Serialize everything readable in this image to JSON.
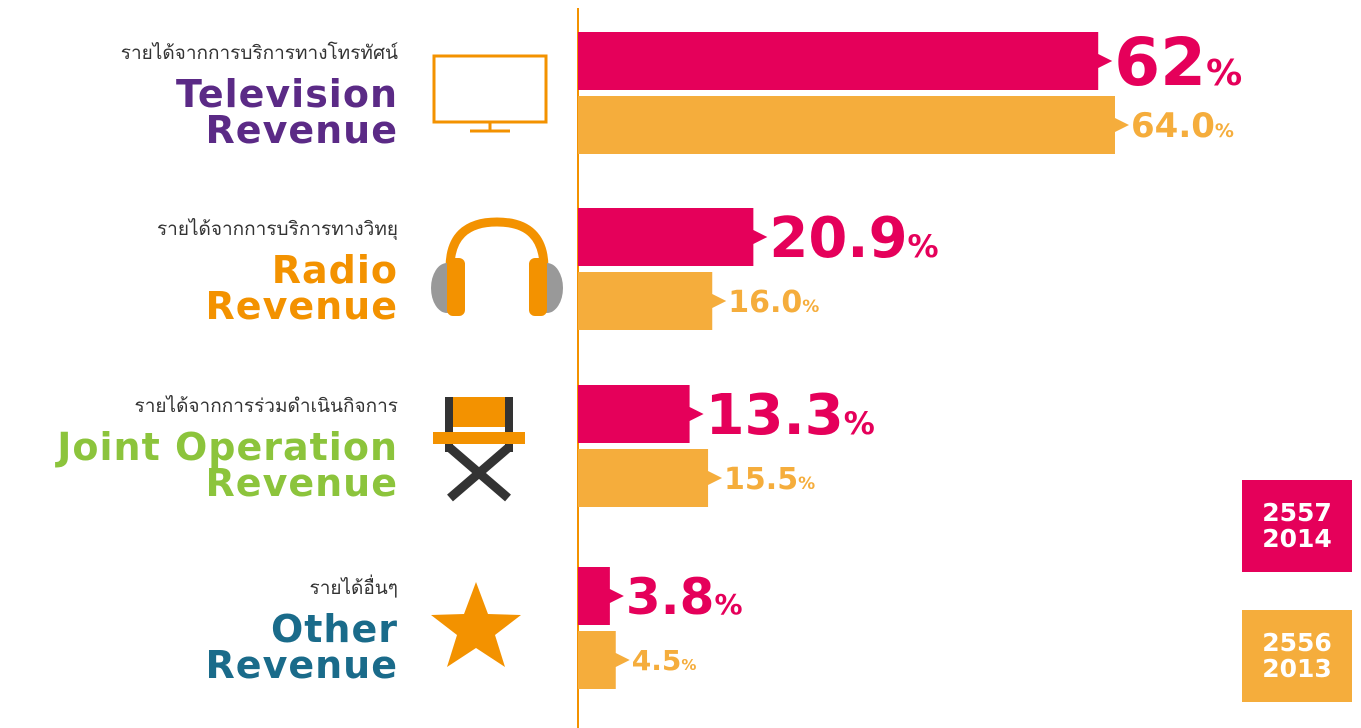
{
  "chart_data": {
    "type": "bar",
    "categories": [
      "Television\nRevenue",
      "Radio\nRevenue",
      "Joint Operation\nRevenue",
      "Other\nRevenue"
    ],
    "category_subtitles": [
      "รายได้จากการบริการทางโทรทัศน์",
      "รายได้จากการบริการทางวิทยุ",
      "รายได้จากการร่วมดำเนินกิจการ",
      "รายได้อื่นๆ"
    ],
    "category_colors": [
      "#5b2a86",
      "#f39200",
      "#8cc43c",
      "#1a6b8a"
    ],
    "series": [
      {
        "name": "2557\n2014",
        "color": "#e5005a",
        "values": [
          62,
          20.9,
          13.3,
          3.8
        ],
        "value_labels": [
          "62%",
          "20.9%",
          "13.3%",
          "3.8%"
        ]
      },
      {
        "name": "2556\n2013",
        "color": "#f5ad3c",
        "values": [
          64.0,
          16.0,
          15.5,
          4.5
        ],
        "value_labels": [
          "64.0%",
          "16.0%",
          "15.5%",
          "4.5%"
        ]
      }
    ],
    "xlim": [
      0,
      64
    ]
  }
}
